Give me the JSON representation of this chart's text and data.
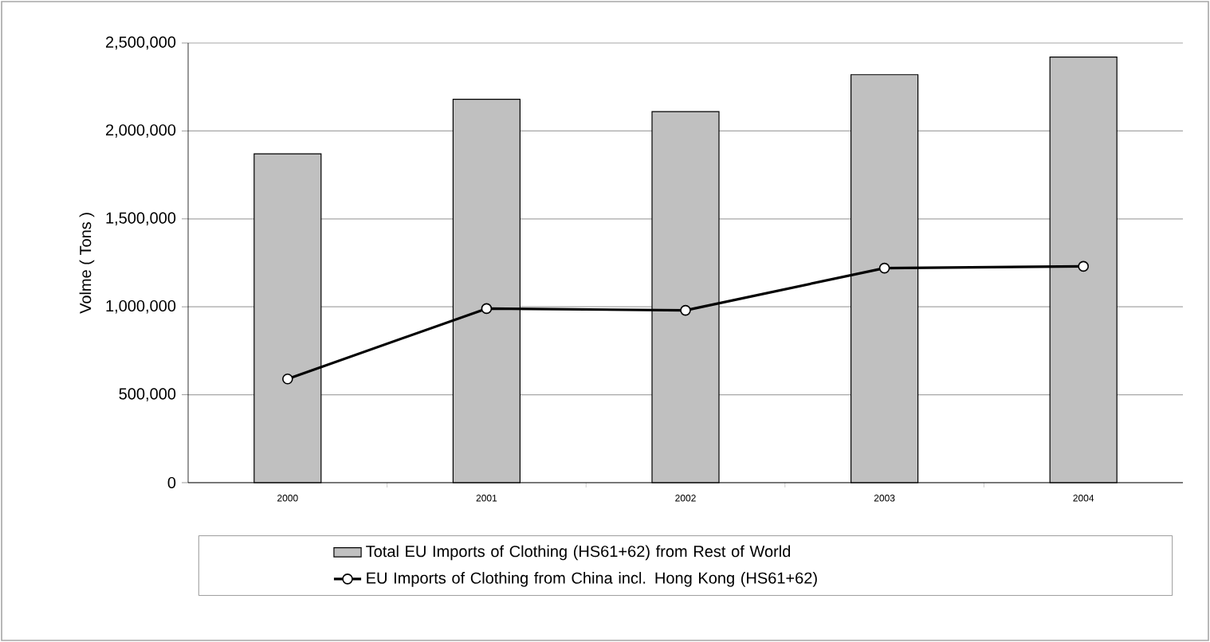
{
  "chart_data": {
    "type": "bar",
    "ylabel": "Volme ( Tons )",
    "categories": [
      "2000",
      "2001",
      "2002",
      "2003",
      "2004"
    ],
    "series": [
      {
        "name": "Total EU Imports of Clothing (HS61+62) from Rest of World",
        "color": "#c0c0c0",
        "values": [
          1870000,
          2180000,
          2110000,
          2320000,
          2420000
        ]
      },
      {
        "name": "EU Imports of Clothing from China incl. Hong Kong (HS61+62)",
        "type": "line",
        "color": "#000000",
        "marker": "circle",
        "values": [
          590000,
          990000,
          980000,
          1220000,
          1230000
        ]
      }
    ],
    "ylim": [
      0,
      2500000
    ],
    "yticks": [
      {
        "value": 0,
        "label": "0"
      },
      {
        "value": 500000,
        "label": "500,000"
      },
      {
        "value": 1000000,
        "label": "1,000,000"
      },
      {
        "value": 1500000,
        "label": "1,500,000"
      },
      {
        "value": 2000000,
        "label": "2,000,000"
      },
      {
        "value": 2500000,
        "label": "2,500,000"
      }
    ],
    "grid": "y",
    "legend": "bottom"
  }
}
